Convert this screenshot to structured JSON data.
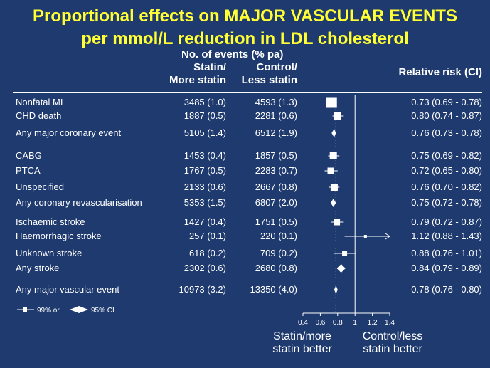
{
  "title_line1": "Proportional effects on MAJOR VASCULAR EVENTS",
  "title_line2": "per mmol/L reduction in LDL cholesterol",
  "header": {
    "events": "No. of events (% pa)",
    "col1_line1": "Statin/",
    "col1_line2": "More statin",
    "col2_line1": "Control/",
    "col2_line2": "Less statin",
    "rr": "Relative risk (CI)"
  },
  "legend": {
    "ci99": "99% or",
    "ci95": "95% CI"
  },
  "bottom": {
    "left_line1": "Statin/more",
    "left_line2": "statin better",
    "right_line1": "Control/less",
    "right_line2": "statin better"
  },
  "chart_data": {
    "type": "forest",
    "xlim": [
      0.4,
      1.4
    ],
    "xticks": [
      "0.4",
      "0.6",
      "0.8",
      "1",
      "1.2",
      "1.4"
    ],
    "reference_line": 1,
    "dotted_line": 0.78,
    "rows": [
      {
        "label": "Nonfatal MI",
        "statin": "3485 (1.0)",
        "control": "4593 (1.3)",
        "rr_text": "0.73 (0.69 - 0.78)",
        "rr": 0.73,
        "lo": 0.69,
        "hi": 0.78,
        "marker": "square",
        "size": 15
      },
      {
        "label": "CHD death",
        "statin": "1887 (0.5)",
        "control": "2281 (0.6)",
        "rr_text": "0.80 (0.74 - 0.87)",
        "rr": 0.8,
        "lo": 0.74,
        "hi": 0.87,
        "marker": "square",
        "size": 10
      },
      {
        "label": "Any major coronary event",
        "statin": "5105 (1.4)",
        "control": "6512 (1.9)",
        "rr_text": "0.76 (0.73 - 0.78)",
        "rr": 0.76,
        "lo": 0.73,
        "hi": 0.78,
        "marker": "diamond"
      },
      {
        "label": "CABG",
        "statin": "1453 (0.4)",
        "control": "1857 (0.5)",
        "rr_text": "0.75 (0.69 - 0.82)",
        "rr": 0.75,
        "lo": 0.69,
        "hi": 0.82,
        "marker": "square",
        "size": 10
      },
      {
        "label": "PTCA",
        "statin": "1767 (0.5)",
        "control": "2283 (0.7)",
        "rr_text": "0.72 (0.65 - 0.80)",
        "rr": 0.72,
        "lo": 0.65,
        "hi": 0.8,
        "marker": "square",
        "size": 9
      },
      {
        "label": "Unspecified",
        "statin": "2133 (0.6)",
        "control": "2667 (0.8)",
        "rr_text": "0.76 (0.70 - 0.82)",
        "rr": 0.76,
        "lo": 0.7,
        "hi": 0.82,
        "marker": "square",
        "size": 10
      },
      {
        "label": "Any coronary revascularisation",
        "statin": "5353 (1.5)",
        "control": "6807 (2.0)",
        "rr_text": "0.75 (0.72 - 0.78)",
        "rr": 0.75,
        "lo": 0.72,
        "hi": 0.78,
        "marker": "diamond"
      },
      {
        "label": "Ischaemic stroke",
        "statin": "1427 (0.4)",
        "control": "1751 (0.5)",
        "rr_text": "0.79 (0.72 - 0.87)",
        "rr": 0.79,
        "lo": 0.72,
        "hi": 0.87,
        "marker": "square",
        "size": 9
      },
      {
        "label": "Haemorrhagic stroke",
        "statin": "257 (0.1)",
        "control": "220 (0.1)",
        "rr_text": "1.12 (0.88 - 1.43)",
        "rr": 1.12,
        "lo": 0.88,
        "hi": 1.43,
        "marker": "square",
        "size": 4,
        "arrow": true
      },
      {
        "label": "Unknown  stroke",
        "statin": "618 (0.2)",
        "control": "709 (0.2)",
        "rr_text": "0.88 (0.76 - 1.01)",
        "rr": 0.88,
        "lo": 0.76,
        "hi": 1.01,
        "marker": "square",
        "size": 7
      },
      {
        "label": "Any stroke",
        "statin": "2302 (0.6)",
        "control": "2680 (0.8)",
        "rr_text": "0.84 (0.79 - 0.89)",
        "rr": 0.84,
        "lo": 0.79,
        "hi": 0.89,
        "marker": "diamond"
      },
      {
        "label": "Any major vascular event",
        "statin": "10973 (3.2)",
        "control": "13350 (4.0)",
        "rr_text": "0.78 (0.76 - 0.80)",
        "rr": 0.78,
        "lo": 0.76,
        "hi": 0.8,
        "marker": "diamond"
      }
    ]
  }
}
